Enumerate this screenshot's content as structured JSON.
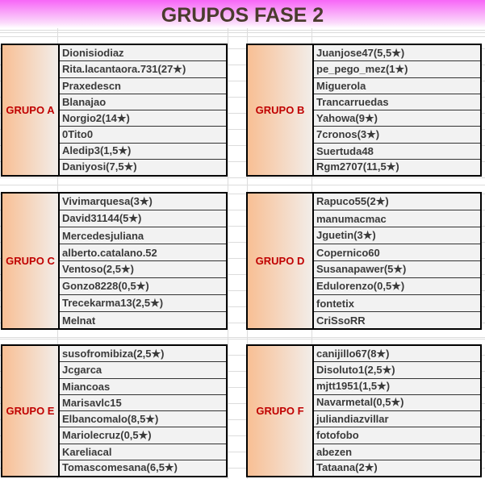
{
  "title": "GRUPOS FASE 2",
  "groups": [
    {
      "label": "GRUPO A",
      "members": [
        "Dionisiodiaz",
        "Rita.lacantaora.731(27★)",
        "Praxedescn",
        "Blanajao",
        "Norgio2(14★)",
        "0Tito0",
        "Aledip3(1,5★)",
        "Daniyosi(7,5★)"
      ]
    },
    {
      "label": "GRUPO B",
      "members": [
        "Juanjose47(5,5★)",
        "pe_pego_mez(1★)",
        "Miguerola",
        "Trancarruedas",
        "Yahowa(9★)",
        "7cronos(3★)",
        "Suertuda48",
        "Rgm2707(11,5★)"
      ]
    },
    {
      "label": "GRUPO C",
      "members": [
        "Vivimarquesa(3★)",
        "David31144(5★)",
        "Mercedesjuliana",
        "alberto.catalano.52",
        "Ventoso(2,5★)",
        "Gonzo8228(0,5★)",
        "Trecekarma13(2,5★)",
        "Melnat"
      ]
    },
    {
      "label": "GRUPO D",
      "members": [
        "Rapuco55(2★)",
        "manumacmac",
        "Jguetin(3★)",
        "Copernico60",
        "Susanapawer(5★)",
        "Edulorenzo(0,5★)",
        "fontetix",
        "CriSsoRR"
      ]
    },
    {
      "label": "GRUPO E",
      "members": [
        "susofromibiza(2,5★)",
        "Jcgarca",
        "Miancoas",
        "Marisavlc15",
        "Elbancomalo(8,5★)",
        "Mariolecruz(0,5★)",
        "Kareliacal",
        "Tomascomesana(6,5★)"
      ]
    },
    {
      "label": "GRUPO F",
      "members": [
        "canijillo67(8★)",
        "Disoluto1(2,5★)",
        "mjtt1951(1,5★)",
        "Navarmetal(0,5★)",
        "juliandiazvillar",
        "fotofobo",
        "abezen",
        "Tataana(2★)"
      ]
    }
  ]
}
